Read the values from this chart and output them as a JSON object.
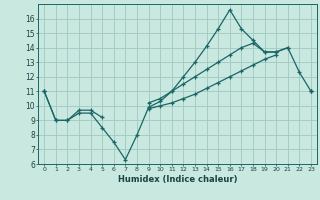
{
  "title": "",
  "xlabel": "Humidex (Indice chaleur)",
  "ylabel": "",
  "background_color": "#c8e8e0",
  "grid_color": "#a0c8c0",
  "line_color": "#1a6666",
  "x_values": [
    0,
    1,
    2,
    3,
    4,
    5,
    6,
    7,
    8,
    9,
    10,
    11,
    12,
    13,
    14,
    15,
    16,
    17,
    18,
    19,
    20,
    21,
    22,
    23
  ],
  "line1": [
    11,
    9,
    9,
    9.5,
    9.5,
    8.5,
    7.5,
    6.3,
    8.0,
    9.9,
    10.3,
    11.0,
    12.0,
    13.0,
    14.1,
    15.3,
    16.6,
    15.3,
    14.5,
    13.7,
    13.7,
    14.0,
    12.3,
    11.0
  ],
  "line2": [
    11,
    9,
    9,
    9.7,
    9.7,
    9.2,
    null,
    null,
    null,
    10.2,
    10.5,
    11.0,
    11.5,
    12.0,
    12.5,
    13.0,
    13.5,
    14.0,
    14.3,
    13.7,
    13.7,
    14.0,
    null,
    11.0
  ],
  "line3": [
    11,
    null,
    null,
    null,
    null,
    null,
    null,
    null,
    null,
    9.8,
    10.0,
    10.2,
    10.5,
    10.8,
    11.2,
    11.6,
    12.0,
    12.4,
    12.8,
    13.2,
    13.5,
    null,
    null,
    11.0
  ],
  "ylim": [
    6,
    17
  ],
  "xlim": [
    -0.5,
    23.5
  ],
  "yticks": [
    6,
    7,
    8,
    9,
    10,
    11,
    12,
    13,
    14,
    15,
    16
  ],
  "xticks": [
    0,
    1,
    2,
    3,
    4,
    5,
    6,
    7,
    8,
    9,
    10,
    11,
    12,
    13,
    14,
    15,
    16,
    17,
    18,
    19,
    20,
    21,
    22,
    23
  ]
}
